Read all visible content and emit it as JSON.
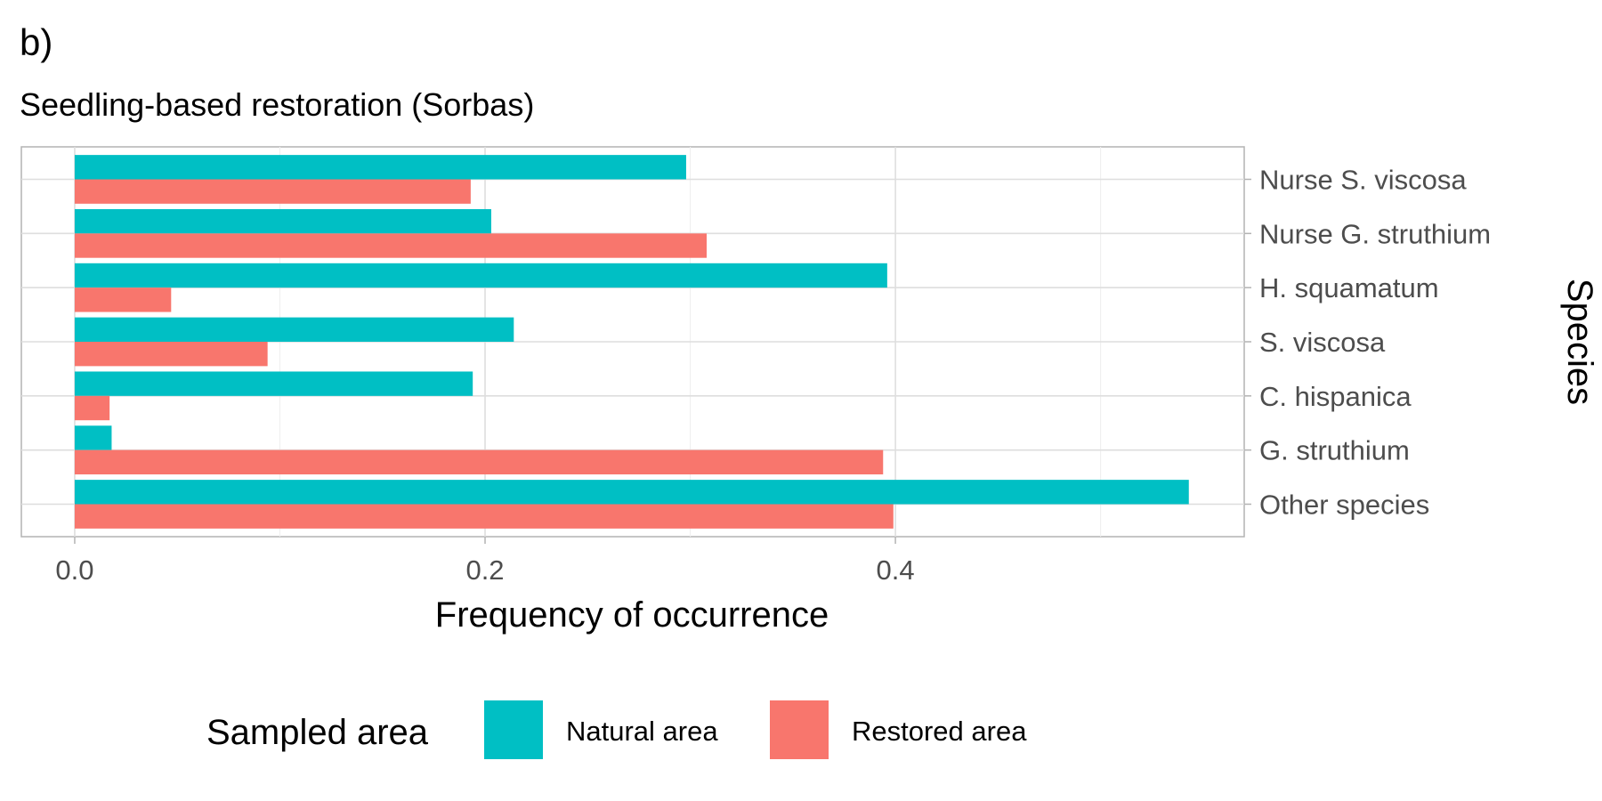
{
  "figure": {
    "panel_tag": "b)",
    "subtitle": "Seedling-based restoration (Sorbas)"
  },
  "chart_data": {
    "type": "bar",
    "orientation": "horizontal",
    "title": "",
    "xlabel": "Frequency of occurrence",
    "ylabel": "Species",
    "xlim": [
      -0.026,
      0.57
    ],
    "x_ticks": [
      0.0,
      0.2,
      0.4
    ],
    "x_tick_labels": [
      "0.0",
      "0.2",
      "0.4"
    ],
    "grid": true,
    "y_axis_position": "right",
    "categories": [
      "Nurse S. viscosa",
      "Nurse G. struthium",
      "H. squamatum",
      "S. viscosa",
      "C. hispanica",
      "G. struthium",
      "Other species"
    ],
    "series": [
      {
        "name": "Natural area",
        "color": "#00BFC4",
        "values": [
          0.298,
          0.203,
          0.396,
          0.214,
          0.194,
          0.018,
          0.543
        ]
      },
      {
        "name": "Restored area",
        "color": "#F8766D",
        "values": [
          0.193,
          0.308,
          0.047,
          0.094,
          0.017,
          0.394,
          0.399
        ]
      }
    ],
    "legend": {
      "title": "Sampled area",
      "position": "bottom"
    }
  }
}
